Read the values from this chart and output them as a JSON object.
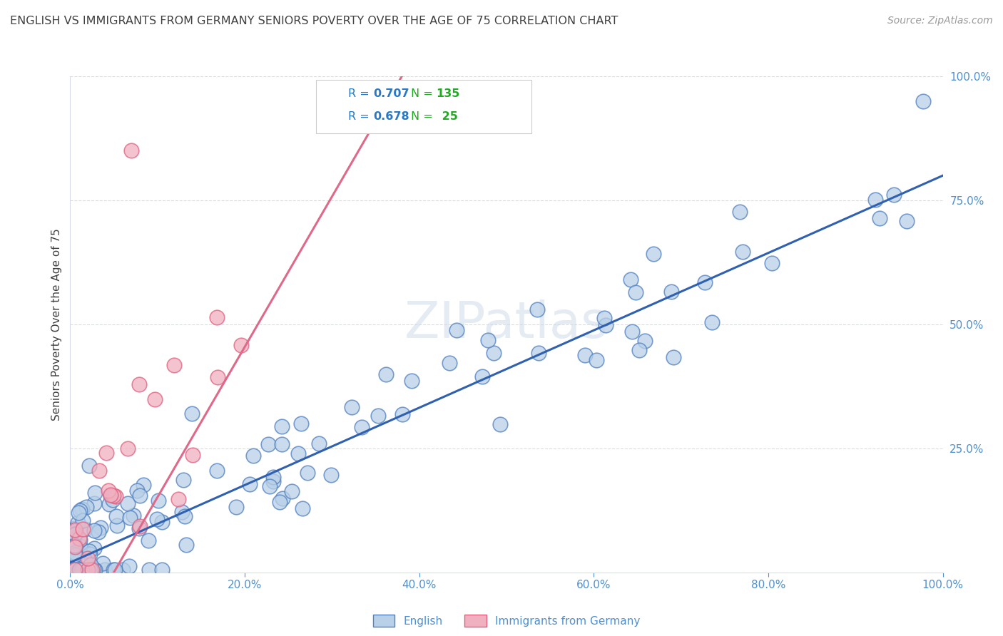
{
  "title": "ENGLISH VS IMMIGRANTS FROM GERMANY SENIORS POVERTY OVER THE AGE OF 75 CORRELATION CHART",
  "source": "Source: ZipAtlas.com",
  "ylabel": "Seniors Poverty Over the Age of 75",
  "xlim": [
    0,
    100
  ],
  "ylim": [
    0,
    100
  ],
  "xtick_vals": [
    0,
    20,
    40,
    60,
    80,
    100
  ],
  "xtick_labels": [
    "0.0%",
    "20.0%",
    "40.0%",
    "60.0%",
    "80.0%",
    "100.0%"
  ],
  "right_ytick_vals": [
    25,
    50,
    75,
    100
  ],
  "right_ytick_labels": [
    "25.0%",
    "50.0%",
    "75.0%",
    "100.0%"
  ],
  "english_R": "0.707",
  "english_N": "135",
  "german_R": "0.678",
  "german_N": "25",
  "english_fill_color": "#b8d0e8",
  "english_edge_color": "#5080c0",
  "german_fill_color": "#f0b0c0",
  "german_line_color": "#e06080",
  "blue_line_color": "#3060b0",
  "pink_line_color": "#e06888",
  "title_color": "#404040",
  "axis_label_color": "#5090d0",
  "grid_color": "#d8dce8",
  "watermark_color": "#ccd8e8",
  "background_color": "#ffffff",
  "legend_border_color": "#cccccc",
  "legend_R_color": "#2878c8",
  "legend_N_color": "#22aa22",
  "bottom_legend_color": "#5090d0",
  "blue_line_x0": 0,
  "blue_line_y0": 2,
  "blue_line_x1": 100,
  "blue_line_y1": 80,
  "pink_line_x0": 5,
  "pink_line_y0": 0,
  "pink_line_x1": 38,
  "pink_line_y1": 100,
  "eng_seed": 42,
  "ger_seed": 99
}
